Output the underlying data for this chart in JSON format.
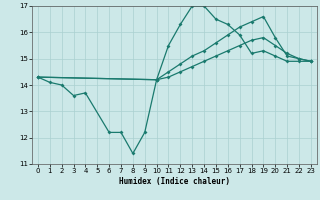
{
  "xlabel": "Humidex (Indice chaleur)",
  "xlim": [
    -0.5,
    23.5
  ],
  "ylim": [
    11,
    17
  ],
  "yticks": [
    11,
    12,
    13,
    14,
    15,
    16,
    17
  ],
  "xticks": [
    0,
    1,
    2,
    3,
    4,
    5,
    6,
    7,
    8,
    9,
    10,
    11,
    12,
    13,
    14,
    15,
    16,
    17,
    18,
    19,
    20,
    21,
    22,
    23
  ],
  "bg_color": "#cce8e8",
  "grid_color": "#aad0d0",
  "line_color": "#1a7a6e",
  "line1_x": [
    0,
    1,
    2,
    3,
    4,
    6,
    7,
    8,
    9,
    10,
    11,
    12,
    13,
    14,
    15,
    16,
    17,
    18,
    19,
    20,
    21,
    22,
    23
  ],
  "line1_y": [
    14.3,
    14.1,
    14.0,
    13.6,
    13.7,
    12.2,
    12.2,
    11.4,
    12.2,
    14.2,
    15.5,
    16.3,
    17.0,
    17.0,
    16.5,
    16.3,
    15.9,
    15.2,
    15.3,
    15.1,
    14.9,
    14.9,
    14.9
  ],
  "line2_x": [
    0,
    10,
    11,
    12,
    13,
    14,
    15,
    16,
    17,
    18,
    19,
    20,
    21,
    22,
    23
  ],
  "line2_y": [
    14.3,
    14.2,
    14.5,
    14.8,
    15.1,
    15.3,
    15.6,
    15.9,
    16.2,
    16.4,
    16.6,
    15.8,
    15.1,
    15.0,
    14.9
  ],
  "line3_x": [
    0,
    10,
    11,
    12,
    13,
    14,
    15,
    16,
    17,
    18,
    19,
    20,
    21,
    22,
    23
  ],
  "line3_y": [
    14.3,
    14.2,
    14.3,
    14.5,
    14.7,
    14.9,
    15.1,
    15.3,
    15.5,
    15.7,
    15.8,
    15.5,
    15.2,
    15.0,
    14.9
  ]
}
